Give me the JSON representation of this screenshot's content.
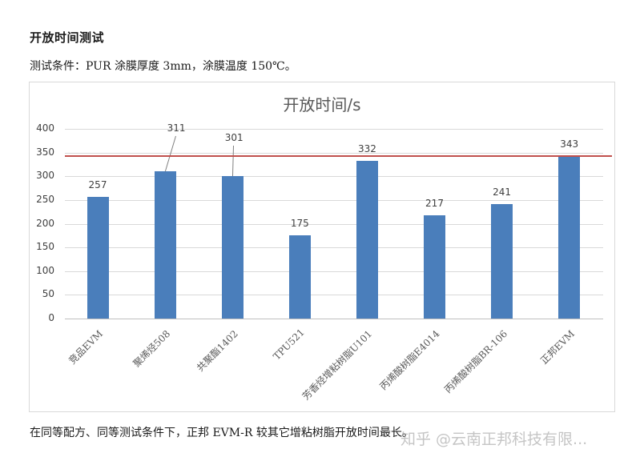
{
  "document": {
    "heading": "开放时间测试",
    "condition": "测试条件：PUR 涂膜厚度 3mm，涂膜温度 150℃。",
    "footer": "在同等配方、同等测试条件下，正邦 EVM-R 较其它增粘树脂开放时间最长。",
    "watermark": "知乎 @云南正邦科技有限..."
  },
  "chart_data": {
    "type": "bar",
    "title": "开放时间/s",
    "xlabel": "",
    "ylabel": "",
    "ylim": [
      0,
      400
    ],
    "yticks": [
      "0",
      "50",
      "100",
      "150",
      "200",
      "250",
      "300",
      "350",
      "400"
    ],
    "grid": true,
    "legend": "none",
    "categories": [
      "竞品EVM",
      "聚烯烃508",
      "共聚酯1402",
      "TPU521",
      "芳香烃增粘树脂U101",
      "丙烯酸树脂E4014",
      "丙烯酸树脂BR-106",
      "正邦EVM"
    ],
    "values": [
      257,
      311,
      301,
      175,
      332,
      217,
      241,
      343
    ],
    "value_labels": [
      "257",
      "311",
      "301",
      "175",
      "332",
      "217",
      "241",
      "343"
    ],
    "bar_color": "#4a7ebb",
    "reference_line": {
      "value": 343,
      "color": "#c0504d"
    }
  }
}
